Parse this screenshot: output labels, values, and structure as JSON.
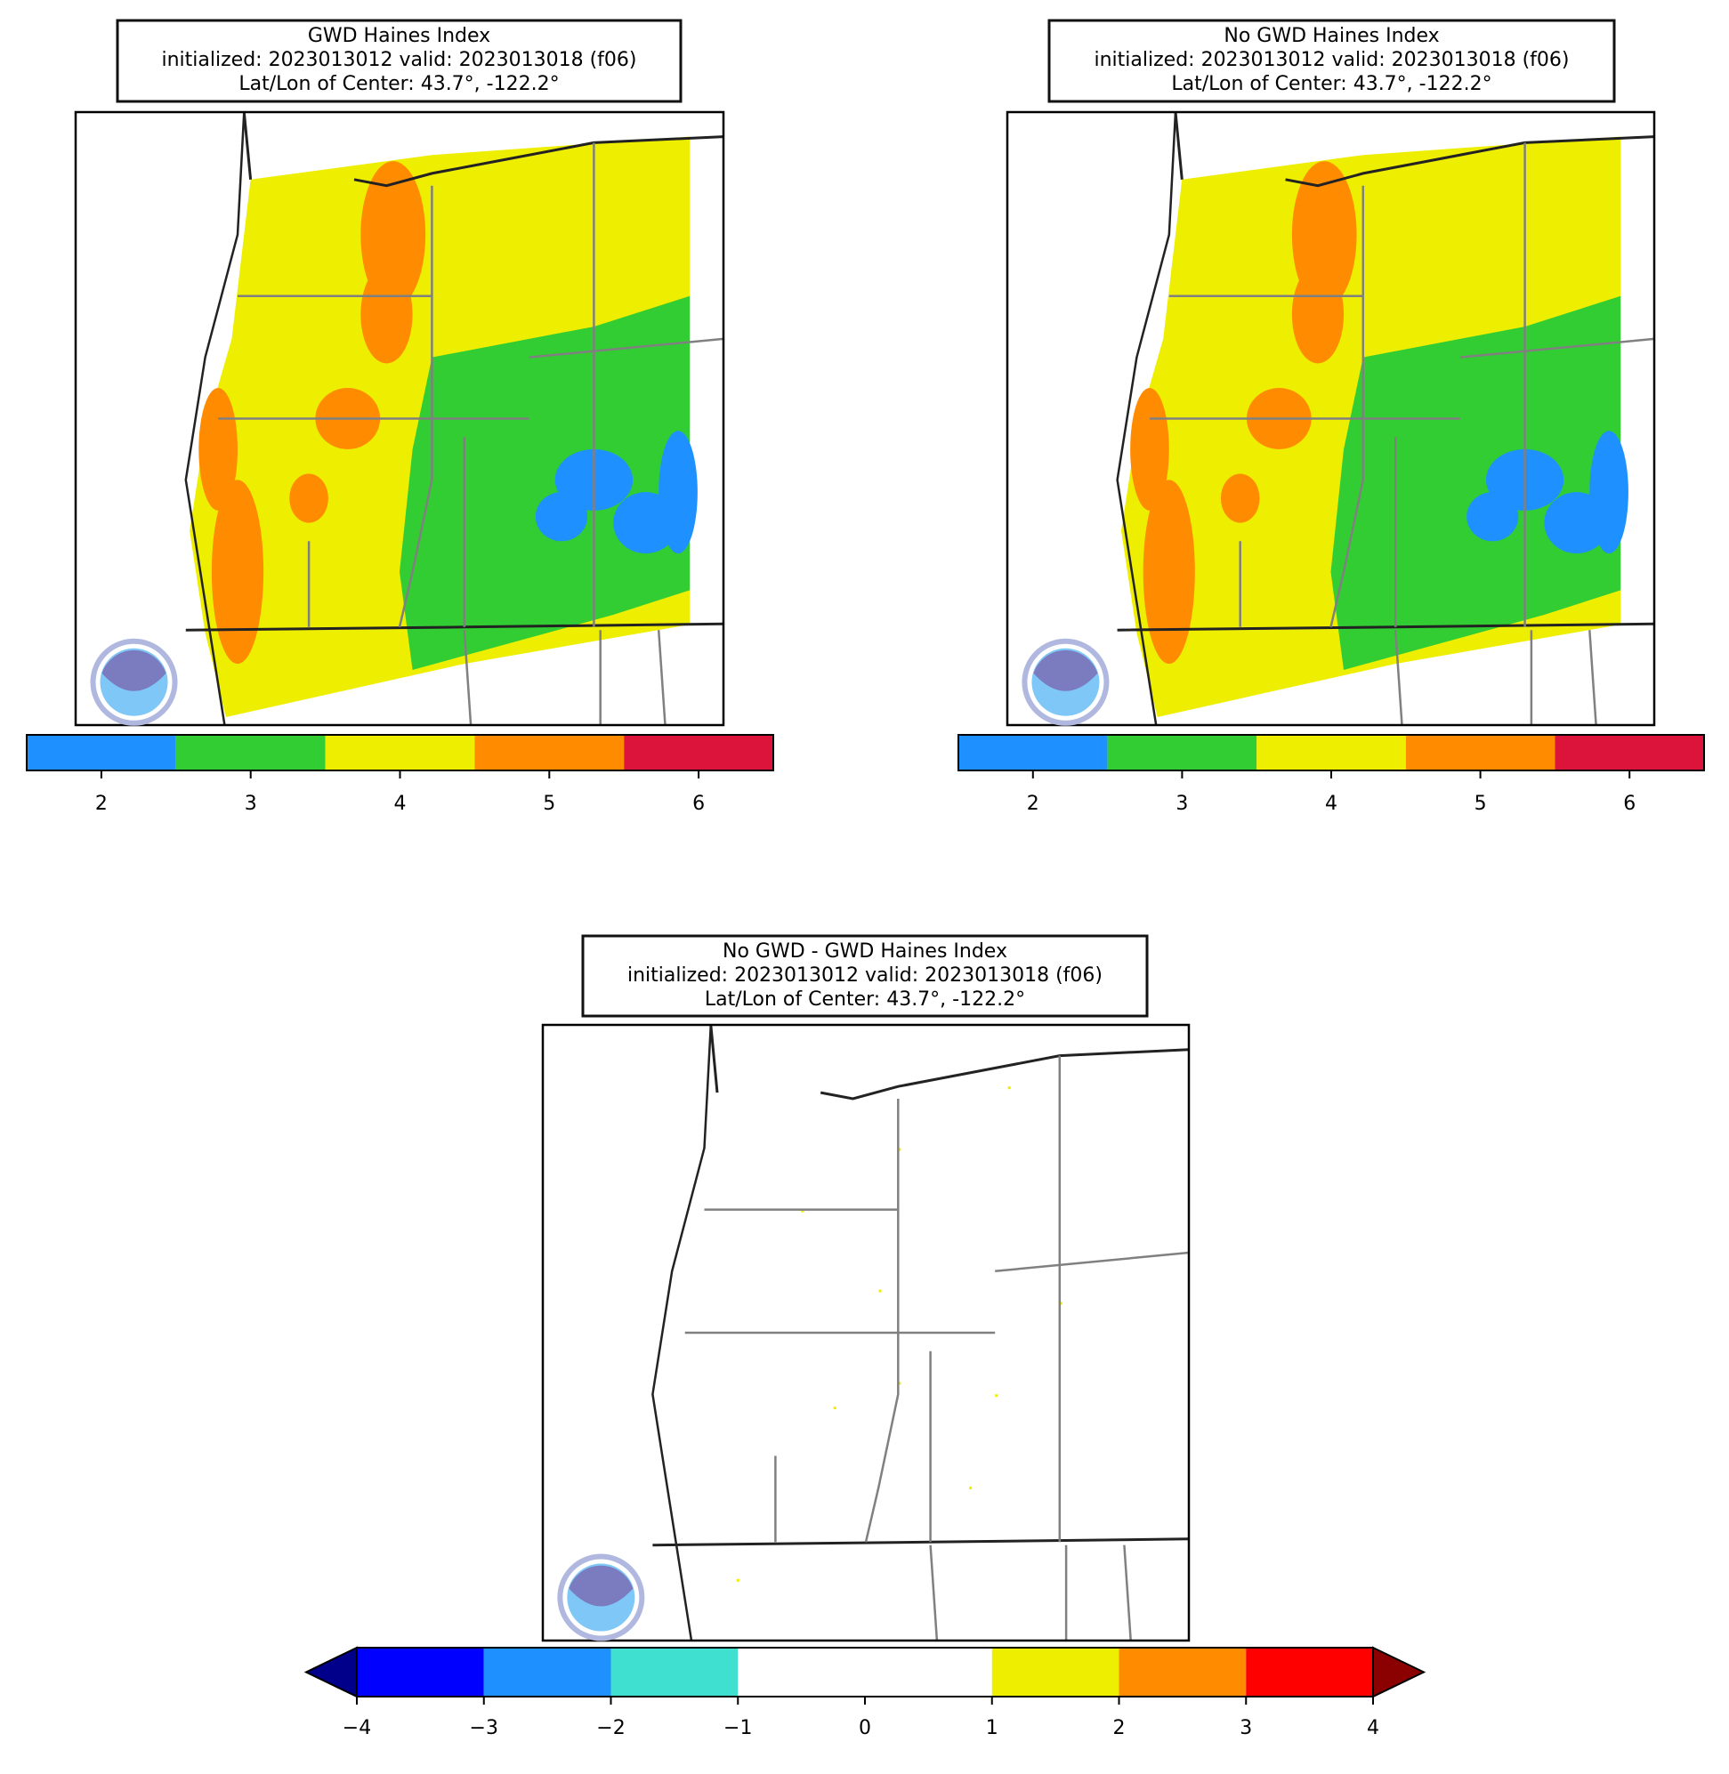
{
  "panels": [
    {
      "title_lines": [
        "GWD Haines Index",
        "initialized: 2023013012 valid: 2023013018 (f06)",
        "Lat/Lon of Center: 43.7°, -122.2°"
      ],
      "field": "haines",
      "colorbar": {
        "bounds": [
          1.5,
          2.5,
          3.5,
          4.5,
          5.5,
          6.5
        ],
        "colors": [
          "#1e90ff",
          "#32cd32",
          "#eeee00",
          "#ff8c00",
          "#dc143c"
        ],
        "ticks": [
          2,
          3,
          4,
          5,
          6
        ]
      }
    },
    {
      "title_lines": [
        "No GWD Haines Index",
        "initialized: 2023013012 valid: 2023013018 (f06)",
        "Lat/Lon of Center: 43.7°, -122.2°"
      ],
      "field": "haines",
      "colorbar": {
        "bounds": [
          1.5,
          2.5,
          3.5,
          4.5,
          5.5,
          6.5
        ],
        "colors": [
          "#1e90ff",
          "#32cd32",
          "#eeee00",
          "#ff8c00",
          "#dc143c"
        ],
        "ticks": [
          2,
          3,
          4,
          5,
          6
        ]
      }
    },
    {
      "title_lines": [
        "No GWD - GWD Haines Index",
        "initialized: 2023013012 valid: 2023013018 (f06)",
        "Lat/Lon of Center: 43.7°, -122.2°"
      ],
      "field": "difference",
      "colorbar": {
        "bounds": [
          -4,
          -3,
          -2,
          -1,
          0,
          1,
          2,
          3,
          4
        ],
        "colors": [
          "#0000ff",
          "#1e90ff",
          "#40e0d0",
          "#ffffff",
          "#ffffff",
          "#eeee00",
          "#ff8c00",
          "#ff0000"
        ],
        "extend_colors": [
          "#00008b",
          "#8b0000"
        ],
        "ticks": [
          {
            "value": -4,
            "label": "−4"
          },
          {
            "value": -3,
            "label": "−3"
          },
          {
            "value": -2,
            "label": "−2"
          },
          {
            "value": -1,
            "label": "−1"
          },
          0,
          1,
          2,
          3,
          4
        ]
      }
    }
  ]
}
